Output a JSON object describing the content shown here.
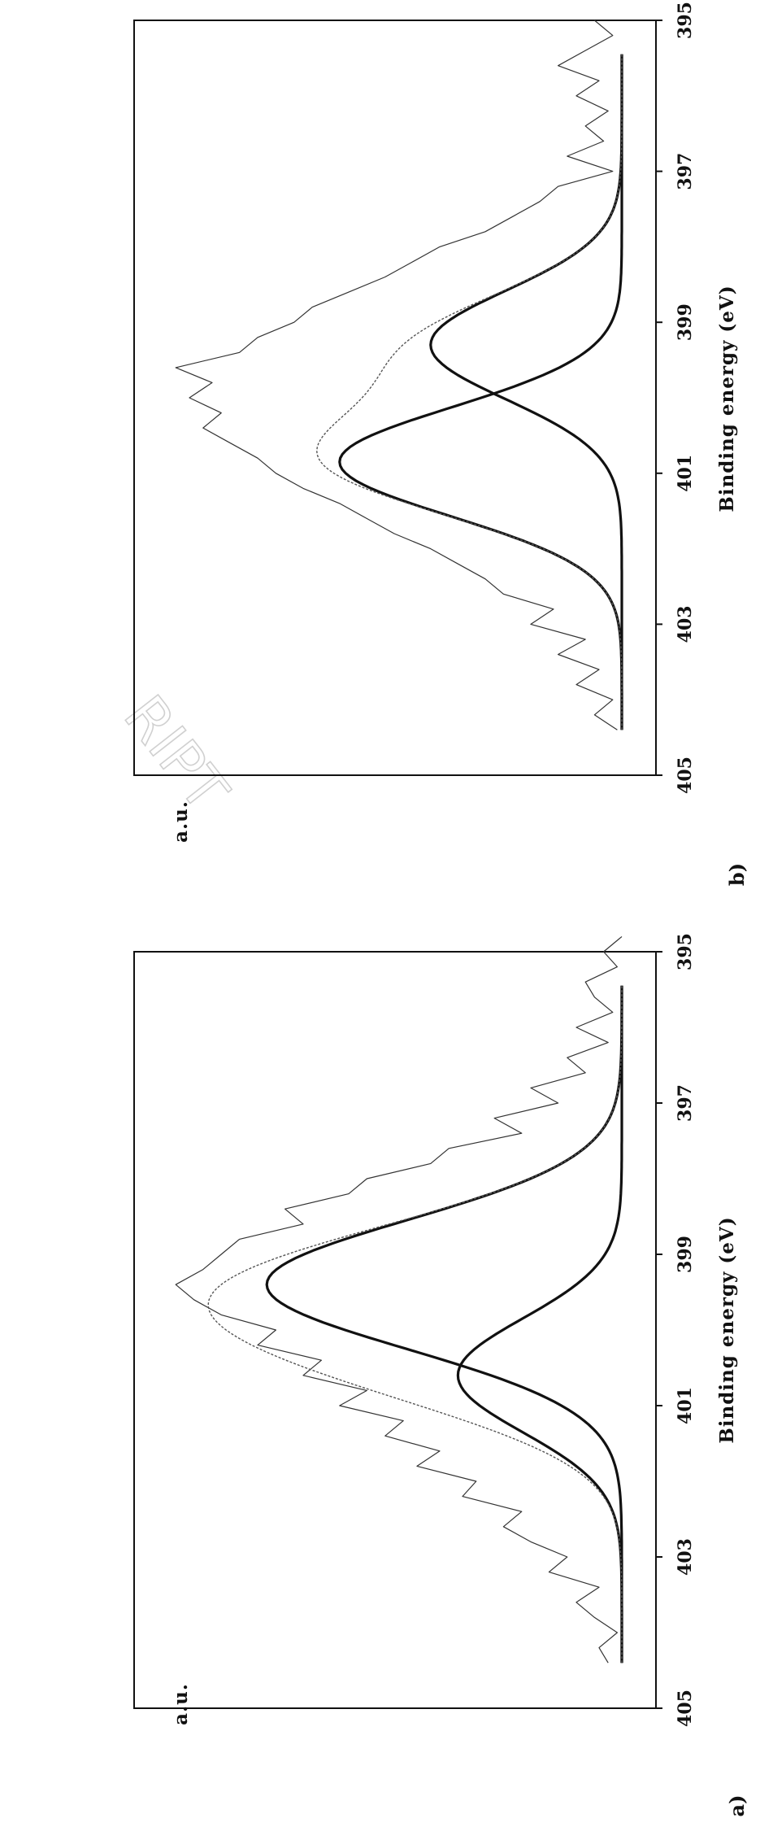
{
  "watermark": "RIPT",
  "chart_data": [
    {
      "type": "line",
      "panel_label": "a)",
      "xlabel": "Binding energy (eV)",
      "ylabel": "a.u.",
      "xlim": [
        405,
        395
      ],
      "xticks": [
        405,
        403,
        401,
        399,
        397,
        395
      ],
      "series": [
        {
          "kind": "raw",
          "x": [
            404.4,
            404.2,
            404.0,
            403.8,
            403.6,
            403.4,
            403.2,
            403.0,
            402.8,
            402.6,
            402.4,
            402.2,
            402.0,
            401.8,
            401.6,
            401.4,
            401.2,
            401.0,
            400.8,
            400.6,
            400.4,
            400.2,
            400.0,
            399.8,
            399.6,
            399.4,
            399.2,
            399.0,
            398.8,
            398.6,
            398.4,
            398.2,
            398.0,
            397.8,
            397.6,
            397.4,
            397.2,
            397.0,
            396.8,
            396.6,
            396.4,
            396.2,
            396.0,
            395.8,
            395.6,
            395.4,
            395.2,
            395.0,
            394.8
          ],
          "y": [
            0.03,
            0.05,
            0.01,
            0.06,
            0.1,
            0.05,
            0.16,
            0.12,
            0.2,
            0.26,
            0.22,
            0.35,
            0.32,
            0.45,
            0.4,
            0.52,
            0.48,
            0.62,
            0.56,
            0.7,
            0.66,
            0.8,
            0.76,
            0.88,
            0.94,
            0.98,
            0.92,
            0.88,
            0.84,
            0.7,
            0.74,
            0.6,
            0.56,
            0.42,
            0.38,
            0.22,
            0.28,
            0.14,
            0.2,
            0.08,
            0.12,
            0.03,
            0.1,
            0.02,
            0.06,
            0.08,
            0.01,
            0.04,
            0.0
          ]
        },
        {
          "kind": "gaussian",
          "center": 399.4,
          "sigma": 0.85,
          "amplitude": 0.78
        },
        {
          "kind": "gaussian",
          "center": 400.6,
          "sigma": 0.75,
          "amplitude": 0.36
        },
        {
          "kind": "sum",
          "components": [
            1,
            2
          ]
        }
      ]
    },
    {
      "type": "line",
      "panel_label": "b)",
      "xlabel": "Binding energy (eV)",
      "ylabel": "a.u.",
      "xlim": [
        405,
        395
      ],
      "xticks": [
        405,
        403,
        401,
        399,
        397,
        395
      ],
      "series": [
        {
          "kind": "raw",
          "x": [
            404.4,
            404.2,
            404.0,
            403.8,
            403.6,
            403.4,
            403.2,
            403.0,
            402.8,
            402.6,
            402.4,
            402.2,
            402.0,
            401.8,
            401.6,
            401.4,
            401.2,
            401.0,
            400.8,
            400.6,
            400.4,
            400.2,
            400.0,
            399.8,
            399.6,
            399.4,
            399.2,
            399.0,
            398.8,
            398.6,
            398.4,
            398.2,
            398.0,
            397.8,
            397.6,
            397.4,
            397.2,
            397.0,
            396.8,
            396.6,
            396.4,
            396.2,
            396.0,
            395.8,
            395.6,
            395.4,
            395.2,
            395.0
          ],
          "y": [
            0.01,
            0.06,
            0.02,
            0.1,
            0.05,
            0.14,
            0.08,
            0.2,
            0.15,
            0.26,
            0.3,
            0.36,
            0.42,
            0.5,
            0.56,
            0.62,
            0.7,
            0.76,
            0.8,
            0.86,
            0.92,
            0.88,
            0.95,
            0.9,
            0.98,
            0.84,
            0.8,
            0.72,
            0.68,
            0.6,
            0.52,
            0.46,
            0.4,
            0.3,
            0.24,
            0.18,
            0.14,
            0.02,
            0.12,
            0.04,
            0.08,
            0.03,
            0.1,
            0.05,
            0.14,
            0.08,
            0.02,
            0.06
          ]
        },
        {
          "kind": "gaussian",
          "center": 400.85,
          "sigma": 0.72,
          "amplitude": 0.62
        },
        {
          "kind": "gaussian",
          "center": 399.3,
          "sigma": 0.72,
          "amplitude": 0.42
        },
        {
          "kind": "sum",
          "components": [
            1,
            2
          ]
        }
      ]
    }
  ]
}
